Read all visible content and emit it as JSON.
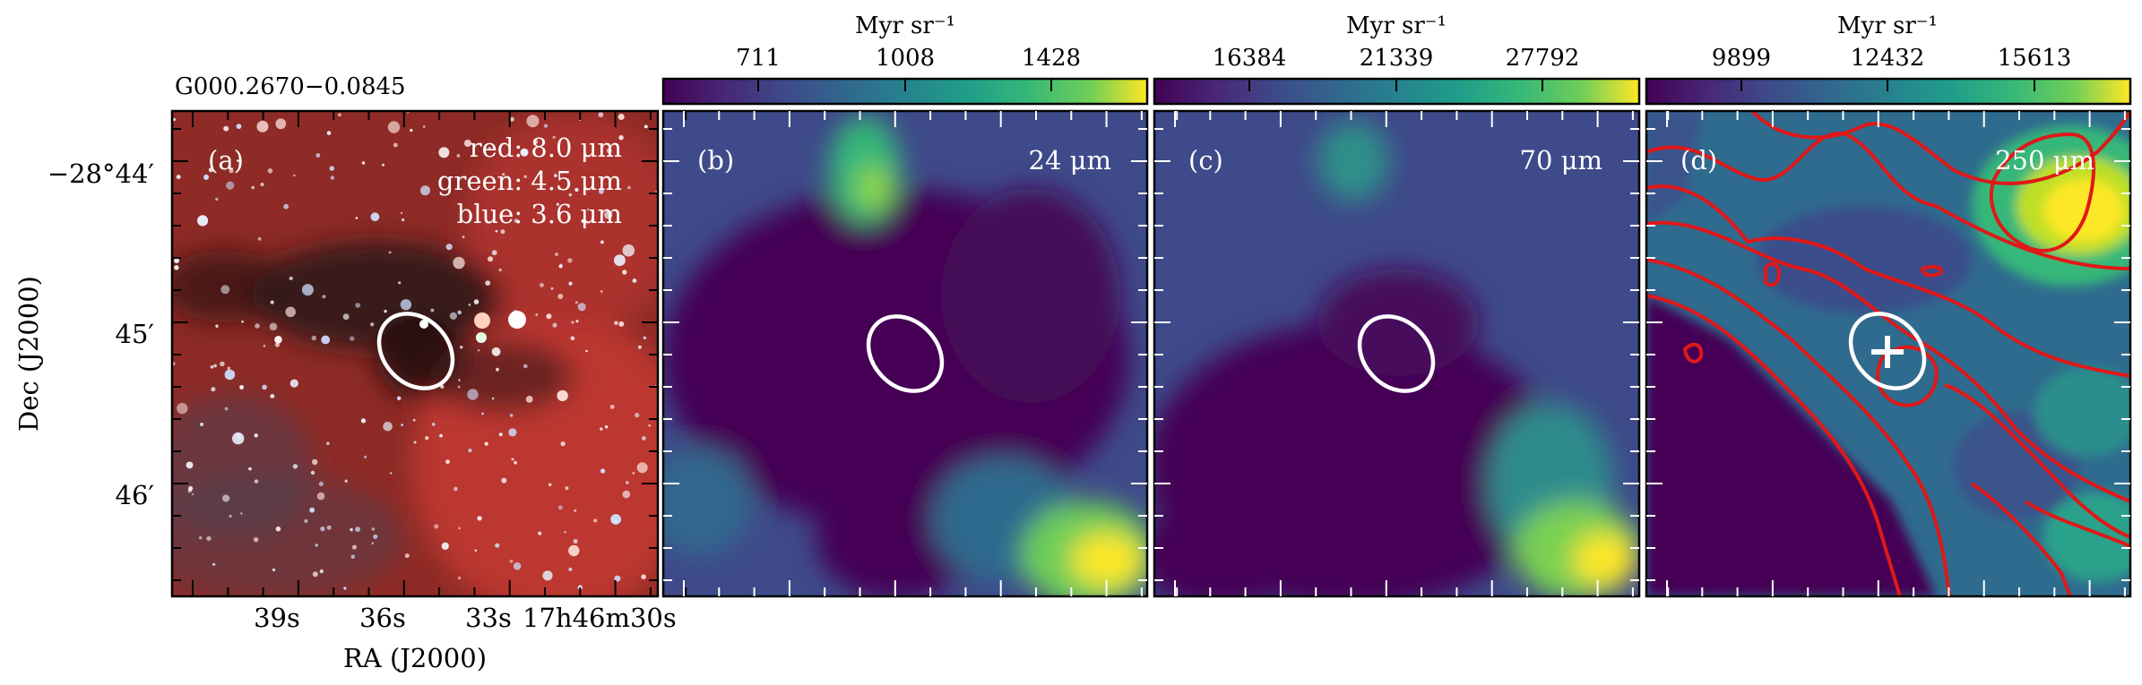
{
  "figure": {
    "source_title": "G000.2670−0.0845",
    "x_axis_label": "RA (J2000)",
    "y_axis_label": "Dec (J2000)",
    "ra_ticks": [
      "39s",
      "36s",
      "33s",
      "17h46m30s"
    ],
    "dec_ticks": [
      "−28°44′",
      "45′",
      "46′"
    ],
    "colors": {
      "contour": "#e01818",
      "marker": "#ffffff",
      "frame": "#000000"
    }
  },
  "panels": [
    {
      "id": "a",
      "label": "(a)",
      "kind": "rgb-composite",
      "legend": [
        "red: 8.0 μm",
        "green: 4.5 μm",
        "blue: 3.6 μm"
      ]
    },
    {
      "id": "b",
      "label": "(b)",
      "band": "24 μm",
      "colorbar": {
        "unit": "Myr sr⁻¹",
        "ticks": [
          "711",
          "1008",
          "1428"
        ],
        "colormap": "viridis"
      }
    },
    {
      "id": "c",
      "label": "(c)",
      "band": "70 μm",
      "colorbar": {
        "unit": "Myr sr⁻¹",
        "ticks": [
          "16384",
          "21339",
          "27792"
        ],
        "colormap": "viridis"
      }
    },
    {
      "id": "d",
      "label": "(d)",
      "band": "250 μm",
      "contours": "red",
      "marker": "plus",
      "colorbar": {
        "unit": "Myr sr⁻¹",
        "ticks": [
          "9899",
          "12432",
          "15613"
        ],
        "colormap": "viridis"
      }
    }
  ]
}
